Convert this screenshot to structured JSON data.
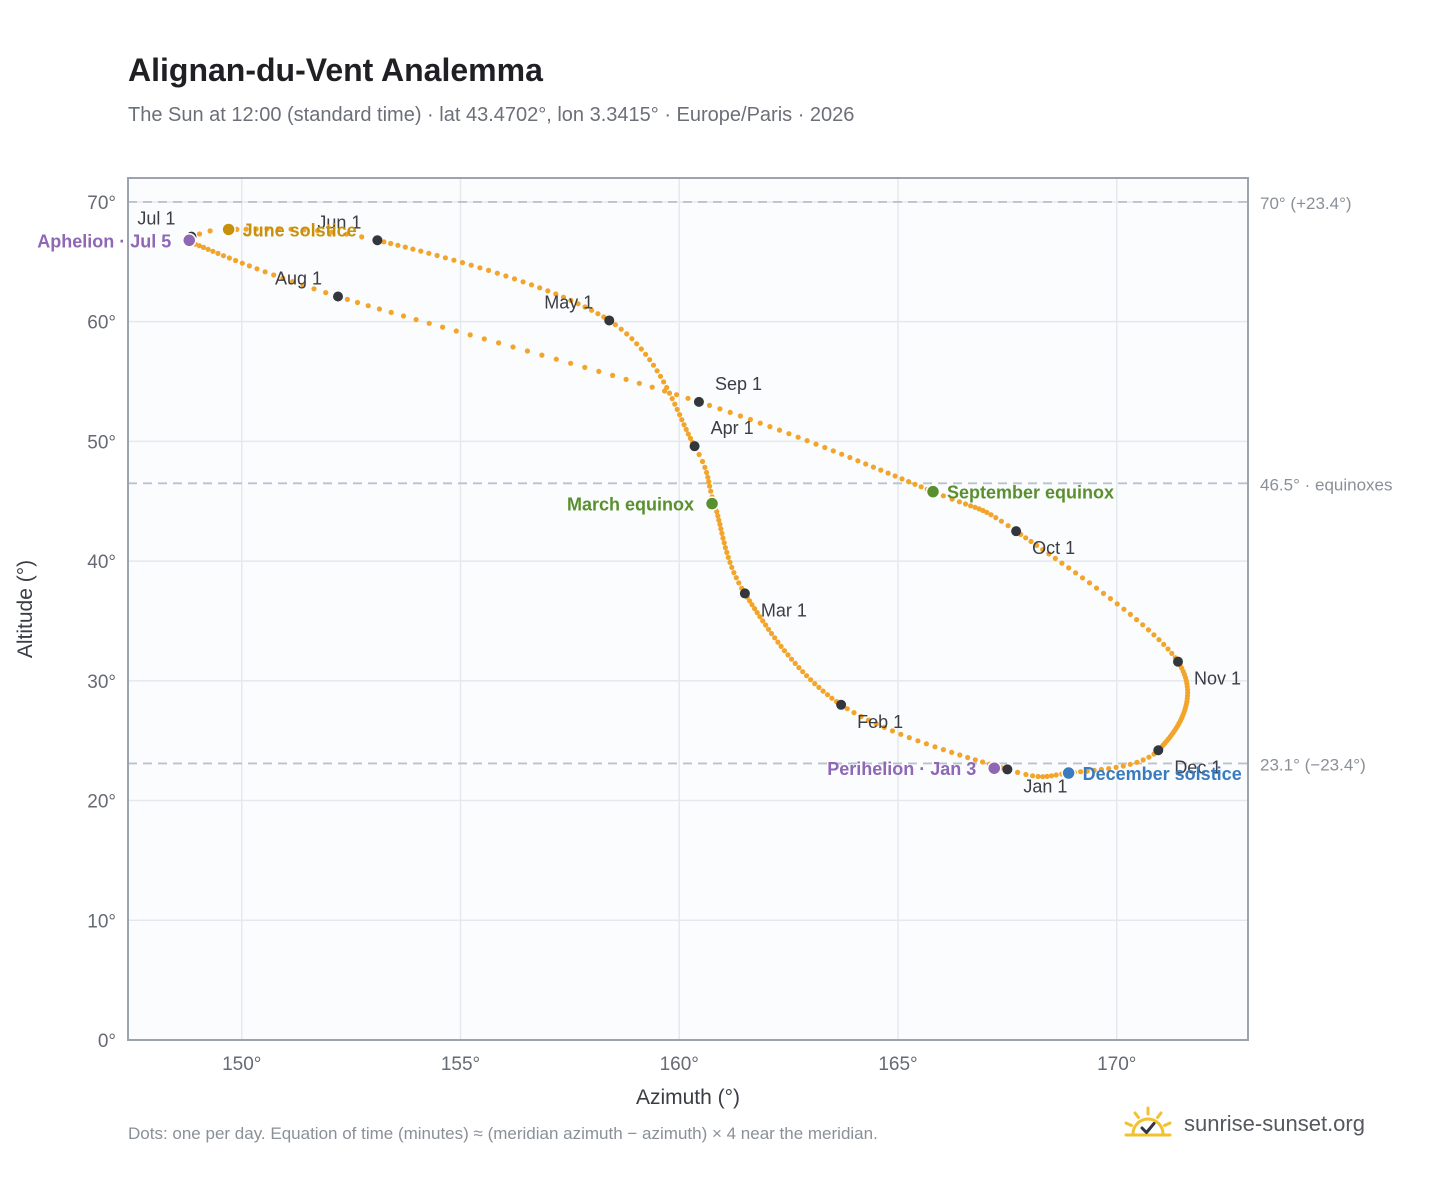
{
  "header": {
    "title": "Alignan-du-Vent Analemma",
    "subtitle": "The Sun at 12:00 (standard time) · lat 43.4702°, lon 3.3415° · Europe/Paris · 2026"
  },
  "footer": {
    "note": "Dots: one per day. Equation of time (minutes) ≈ (meridian azimuth − azimuth) × 4 near the meridian.",
    "brand": "sunrise-sunset.org"
  },
  "colors": {
    "curve": "#f2a52a",
    "month_marker": "#33363d",
    "equinox": "#5a8f2e",
    "june_solstice": "#c8900f",
    "december_solstice": "#3a7bbf",
    "apsis": "#8e67b5",
    "reference_line": "#b9c3d0",
    "plot_background": "#fafcfd",
    "grid": "#e4e9ee",
    "axis_frame": "#9aa3ae",
    "brand_sun": "#f2c12e"
  },
  "chart_data": {
    "type": "scatter",
    "xlabel": "Azimuth (°)",
    "ylabel": "Altitude (°)",
    "xlim": [
      147.4,
      173.0
    ],
    "ylim": [
      0,
      72
    ],
    "x_ticks": [
      150,
      155,
      160,
      165,
      170
    ],
    "y_ticks": [
      0,
      10,
      20,
      30,
      40,
      50,
      60,
      70
    ],
    "x_tick_labels": [
      "150°",
      "155°",
      "160°",
      "165°",
      "170°"
    ],
    "y_tick_labels": [
      "0°",
      "10°",
      "20°",
      "30°",
      "40°",
      "50°",
      "60°",
      "70°"
    ],
    "grid": true,
    "curve_anchors": [
      {
        "x": 167.5,
        "y": 22.6
      },
      {
        "x": 163.7,
        "y": 28.0
      },
      {
        "x": 161.5,
        "y": 37.3
      },
      {
        "x": 160.8,
        "y": 44.8
      },
      {
        "x": 160.35,
        "y": 49.6
      },
      {
        "x": 158.4,
        "y": 60.1
      },
      {
        "x": 153.1,
        "y": 66.8
      },
      {
        "x": 149.7,
        "y": 67.7
      },
      {
        "x": 148.8,
        "y": 66.8
      },
      {
        "x": 148.85,
        "y": 66.6
      },
      {
        "x": 152.2,
        "y": 62.1
      },
      {
        "x": 160.45,
        "y": 53.3
      },
      {
        "x": 165.8,
        "y": 45.8
      },
      {
        "x": 167.7,
        "y": 42.5
      },
      {
        "x": 171.4,
        "y": 31.6
      },
      {
        "x": 170.95,
        "y": 24.2
      },
      {
        "x": 168.9,
        "y": 22.3
      },
      {
        "x": 167.5,
        "y": 22.6
      }
    ],
    "month_markers": [
      {
        "label": "Jan 1",
        "x": 167.5,
        "y": 22.6,
        "pos": "below-right"
      },
      {
        "label": "Feb 1",
        "x": 163.7,
        "y": 28.0,
        "pos": "below-right"
      },
      {
        "label": "Mar 1",
        "x": 161.5,
        "y": 37.3,
        "pos": "below-right"
      },
      {
        "label": "Apr 1",
        "x": 160.35,
        "y": 49.6,
        "pos": "above-right"
      },
      {
        "label": "May 1",
        "x": 158.4,
        "y": 60.1,
        "pos": "above-left"
      },
      {
        "label": "Jun 1",
        "x": 153.1,
        "y": 66.8,
        "pos": "above-left"
      },
      {
        "label": "Jul 1",
        "x": 148.85,
        "y": 67.1,
        "pos": "above-left"
      },
      {
        "label": "Aug 1",
        "x": 152.2,
        "y": 62.1,
        "pos": "above-left"
      },
      {
        "label": "Sep 1",
        "x": 160.45,
        "y": 53.3,
        "pos": "above-right"
      },
      {
        "label": "Oct 1",
        "x": 167.7,
        "y": 42.5,
        "pos": "below-right"
      },
      {
        "label": "Nov 1",
        "x": 171.4,
        "y": 31.6,
        "pos": "below-right"
      },
      {
        "label": "Dec 1",
        "x": 170.95,
        "y": 24.2,
        "pos": "below-right"
      }
    ],
    "events": [
      {
        "label": "March equinox",
        "x": 160.75,
        "y": 44.8,
        "color_key": "equinox",
        "pos": "left"
      },
      {
        "label": "September equinox",
        "x": 165.8,
        "y": 45.8,
        "color_key": "equinox",
        "pos": "right"
      },
      {
        "label": "June solstice",
        "x": 149.7,
        "y": 67.7,
        "color_key": "june_solstice",
        "pos": "right"
      },
      {
        "label": "December solstice",
        "x": 168.9,
        "y": 22.3,
        "color_key": "december_solstice",
        "pos": "right"
      },
      {
        "label": "Aphelion · Jul 5",
        "x": 148.8,
        "y": 66.8,
        "color_key": "apsis",
        "pos": "left"
      },
      {
        "label": "Perihelion · Jan 3",
        "x": 167.2,
        "y": 22.7,
        "color_key": "apsis",
        "pos": "left"
      }
    ],
    "reference_lines": [
      {
        "y": 70.0,
        "label": "70° (+23.4°)"
      },
      {
        "y": 46.5,
        "label": "46.5° · equinoxes"
      },
      {
        "y": 23.1,
        "label": "23.1° (−23.4°)"
      }
    ]
  }
}
